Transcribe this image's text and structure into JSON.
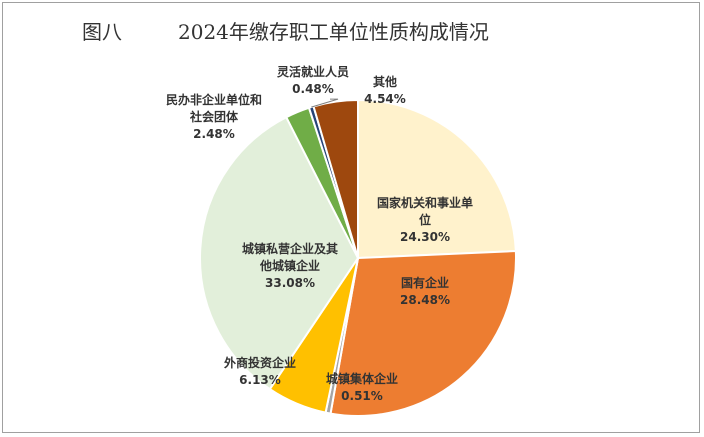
{
  "figure_label": "图八",
  "chart_data": {
    "type": "pie",
    "title": "2024年缴存职工单位性质构成情况",
    "categories": [
      "国家机关和事业单位",
      "国有企业",
      "城镇集体企业",
      "外商投资企业",
      "城镇私营企业及其他城镇企业",
      "民办非企业单位和社会团体",
      "灵活就业人员",
      "其他"
    ],
    "values": [
      24.3,
      28.48,
      0.51,
      6.13,
      33.08,
      2.48,
      0.48,
      4.54
    ],
    "value_labels": [
      "24.30%",
      "28.48%",
      "0.51%",
      "6.13%",
      "33.08%",
      "2.48%",
      "0.48%",
      "4.54%"
    ],
    "colors": [
      "#fff2cc",
      "#ed7d31",
      "#a5a5a5",
      "#ffc000",
      "#e2efda",
      "#70ad47",
      "#264478",
      "#9e480e"
    ],
    "start_angle_deg": 0,
    "direction": "clockwise"
  }
}
